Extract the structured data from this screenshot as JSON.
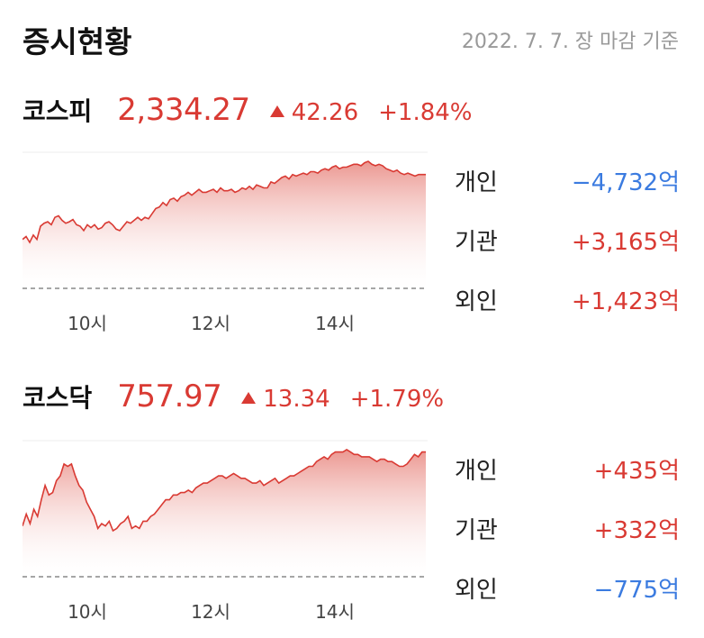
{
  "header": {
    "title": "증시현황",
    "date": "2022. 7. 7. 장 마감 기준"
  },
  "indices": [
    {
      "name": "코스피",
      "value": "2,334.27",
      "change": "42.26",
      "rate": "+1.84%",
      "x_ticks": [
        "10시",
        "12시",
        "14시"
      ],
      "investors": [
        {
          "label": "개인",
          "value": "−4,732억",
          "direction": "down"
        },
        {
          "label": "기관",
          "value": "+3,165억",
          "direction": "up"
        },
        {
          "label": "외인",
          "value": "+1,423억",
          "direction": "up"
        }
      ],
      "intraday": [
        40,
        44,
        36,
        46,
        40,
        58,
        62,
        64,
        60,
        70,
        72,
        66,
        62,
        64,
        67,
        60,
        58,
        52,
        60,
        56,
        60,
        54,
        56,
        62,
        64,
        60,
        54,
        52,
        58,
        64,
        62,
        66,
        70,
        66,
        70,
        68,
        75,
        82,
        84,
        90,
        86,
        94,
        96,
        92,
        98,
        100,
        104,
        100,
        104,
        108,
        104,
        104,
        106,
        108,
        104,
        110,
        106,
        106,
        108,
        104,
        106,
        110,
        108,
        112,
        108,
        114,
        112,
        110,
        110,
        118,
        116,
        120,
        124,
        126,
        122,
        128,
        126,
        128,
        130,
        128,
        132,
        132,
        130,
        134,
        136,
        134,
        138,
        140,
        136,
        138,
        138,
        140,
        142,
        142,
        140,
        144,
        146,
        142,
        140,
        142,
        140,
        136,
        134,
        132,
        134,
        130,
        128,
        130,
        128,
        126,
        128,
        128,
        128
      ]
    },
    {
      "name": "코스닥",
      "value": "757.97",
      "change": "13.34",
      "rate": "+1.79%",
      "x_ticks": [
        "10시",
        "12시",
        "14시"
      ],
      "investors": [
        {
          "label": "개인",
          "value": "+435억",
          "direction": "up"
        },
        {
          "label": "기관",
          "value": "+332억",
          "direction": "up"
        },
        {
          "label": "외인",
          "value": "−775억",
          "direction": "down"
        }
      ],
      "intraday": [
        62,
        72,
        64,
        76,
        70,
        84,
        96,
        88,
        90,
        100,
        104,
        114,
        112,
        114,
        104,
        96,
        92,
        82,
        76,
        70,
        60,
        64,
        62,
        66,
        58,
        60,
        64,
        66,
        70,
        60,
        62,
        60,
        66,
        66,
        70,
        72,
        76,
        80,
        84,
        84,
        88,
        88,
        90,
        90,
        92,
        90,
        94,
        96,
        98,
        98,
        100,
        102,
        104,
        104,
        102,
        104,
        106,
        104,
        102,
        102,
        100,
        98,
        98,
        100,
        96,
        98,
        100,
        102,
        98,
        100,
        102,
        104,
        104,
        106,
        108,
        110,
        112,
        112,
        116,
        118,
        120,
        118,
        122,
        124,
        124,
        124,
        126,
        124,
        122,
        122,
        120,
        120,
        120,
        118,
        116,
        118,
        118,
        116,
        116,
        114,
        112,
        112,
        114,
        118,
        122,
        120,
        124,
        124
      ]
    }
  ]
}
